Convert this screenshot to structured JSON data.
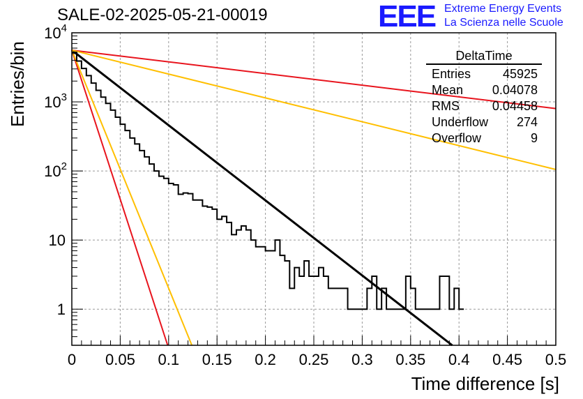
{
  "header": {
    "title": "SALE-02-2025-05-21-00019",
    "logo_mark": "EEE",
    "logo_line1": "Extreme Energy Events",
    "logo_line2": "La Scienza nelle Scuole"
  },
  "stats_box": {
    "title": "DeltaTime",
    "rows": [
      {
        "label": "Entries",
        "value": "45925"
      },
      {
        "label": "Mean",
        "value": "0.04078"
      },
      {
        "label": "RMS",
        "value": "0.04458"
      },
      {
        "label": "Underflow",
        "value": "274"
      },
      {
        "label": "Overflow",
        "value": "9"
      }
    ]
  },
  "chart_data": {
    "type": "line",
    "title": "SALE-02-2025-05-21-00019",
    "xlabel": "Time difference [s]",
    "ylabel": "Entries/bin",
    "xlim": [
      0,
      0.5
    ],
    "ylim": [
      0.3,
      10000
    ],
    "yscale": "log",
    "grid": true,
    "x_ticks": [
      "0",
      "0.05",
      "0.1",
      "0.15",
      "0.2",
      "0.25",
      "0.3",
      "0.35",
      "0.4",
      "0.45",
      "0.5"
    ],
    "y_ticks": [
      "1",
      "10",
      "10^2",
      "10^3",
      "10^4"
    ],
    "histogram": {
      "bin_width": 0.005,
      "color": "#000000",
      "values": [
        5200,
        3900,
        3050,
        2400,
        1870,
        1470,
        1170,
        950,
        760,
        600,
        475,
        385,
        300,
        246,
        197,
        160,
        126,
        100,
        84,
        78,
        66,
        63,
        46,
        48,
        47,
        38,
        38,
        31,
        30,
        28,
        20,
        22,
        18,
        12,
        14,
        16,
        14,
        10,
        8,
        8,
        7,
        7,
        10,
        6,
        5,
        2,
        4,
        3,
        5,
        3,
        3,
        4,
        3,
        2,
        2,
        2,
        2,
        1,
        1,
        1,
        1,
        2,
        3,
        1,
        2,
        1,
        1,
        1,
        1,
        3,
        2,
        1,
        1,
        1,
        1,
        1,
        3,
        3,
        1,
        2,
        1
      ]
    },
    "fit_lines": [
      {
        "name": "fit",
        "color": "#000000",
        "points": [
          [
            0,
            5600
          ],
          [
            0.393,
            0.3
          ]
        ]
      },
      {
        "name": "red-steep",
        "color": "#e8141d",
        "points": [
          [
            0,
            5600
          ],
          [
            0.099,
            0.3
          ]
        ]
      },
      {
        "name": "orange-steep",
        "color": "#ffbf00",
        "points": [
          [
            0,
            5600
          ],
          [
            0.124,
            0.3
          ]
        ]
      },
      {
        "name": "red-shallow",
        "color": "#e8141d",
        "points": [
          [
            0,
            5600
          ],
          [
            0.5,
            800
          ]
        ]
      },
      {
        "name": "orange-shallow",
        "color": "#ffbf00",
        "points": [
          [
            0,
            5600
          ],
          [
            0.5,
            105
          ]
        ]
      }
    ]
  }
}
